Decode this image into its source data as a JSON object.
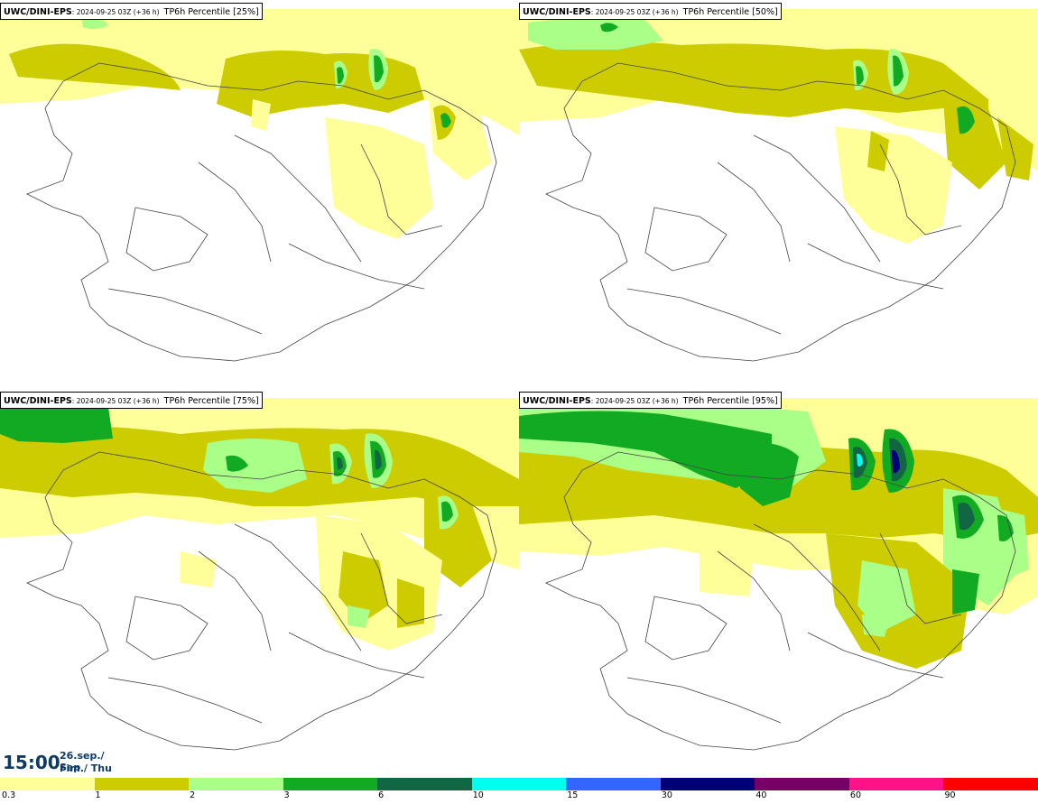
{
  "panels": [
    {
      "model": "UWC/DINI-EPS",
      "meta": ": 2024-09-25 03Z (+36 h)",
      "field": "TP6h Percentile [25%]"
    },
    {
      "model": "UWC/DINI-EPS",
      "meta": ": 2024-09-25 03Z (+36 h)",
      "field": "TP6h Percentile [50%]"
    },
    {
      "model": "UWC/DINI-EPS",
      "meta": ": 2024-09-25 03Z (+36 h)",
      "field": "TP6h Percentile [75%]"
    },
    {
      "model": "UWC/DINI-EPS",
      "meta": ": 2024-09-25 03Z (+36 h)",
      "field": "TP6h Percentile [95%]"
    }
  ],
  "valid_time": {
    "time": "15:00",
    "date": "26.sep./ Sep",
    "day": "Fim./ Thu"
  },
  "legend": {
    "colors": [
      "#ffff99",
      "#cccc00",
      "#aaff88",
      "#11aa22",
      "#116644",
      "#00ffee",
      "#3366ff",
      "#000077",
      "#770066",
      "#ff1188",
      "#ff0000"
    ],
    "ticks": [
      "0.3",
      "1",
      "2",
      "3",
      "6",
      "10",
      "15",
      "30",
      "40",
      "60",
      "90"
    ]
  },
  "colors": {
    "title_blue": "#0d3a66"
  }
}
